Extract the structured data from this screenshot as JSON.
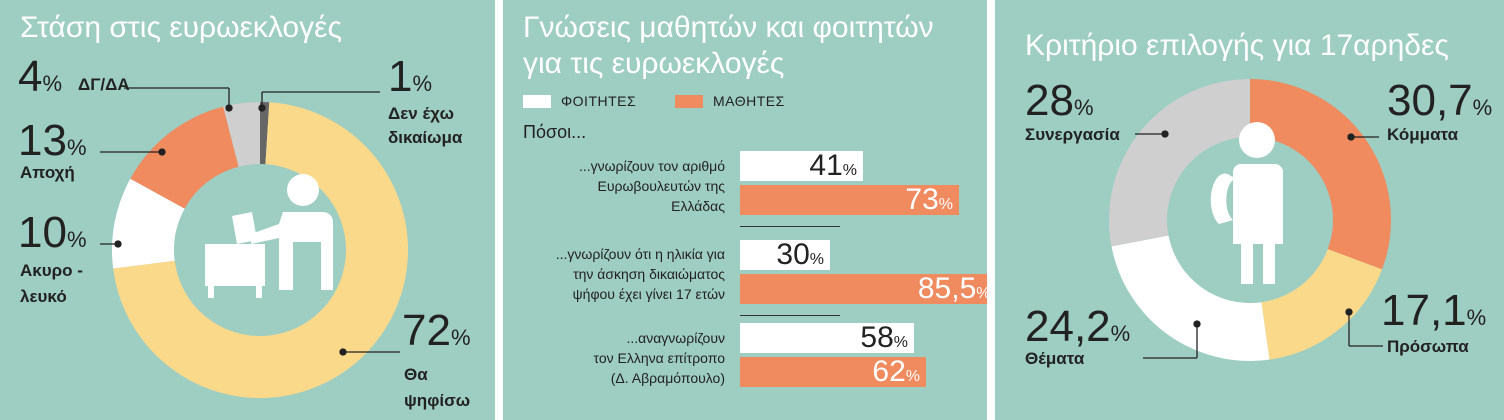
{
  "colors": {
    "background": "#9ecdc2",
    "orange": "#f08a5f",
    "yellow": "#fbd98a",
    "light_gray": "#cfcfcf",
    "dark_gray": "#666666",
    "white": "#ffffff"
  },
  "panel1": {
    "title": "Στάση στις ευρωεκλογές",
    "icon": "voter-ballot-box-icon",
    "segments": [
      {
        "value": "1",
        "label": "Δεν έχω\nδικαίωμα"
      },
      {
        "value": "72",
        "label": "Θα\nψηφίσω"
      },
      {
        "value": "10",
        "label": "Ακυρο -\nλευκό"
      },
      {
        "value": "13",
        "label": "Αποχή"
      },
      {
        "value": "4",
        "label": "ΔΓ/ΔΑ"
      }
    ]
  },
  "panel2": {
    "title_line1": "Γνώσεις μαθητών και φοιτητών",
    "title_line2": "για τις ευρωεκλογές",
    "legend": {
      "students": "ΦΟΙΤΗΤΕΣ",
      "pupils": "ΜΑΘΗΤΕΣ"
    },
    "subtitle": "Πόσοι...",
    "questions": [
      {
        "text": "...γνωρίζουν τον αριθμό\nΕυρωβουλευτών της\nΕλλάδας",
        "students": "41",
        "pupils": "73"
      },
      {
        "text": "...γνωρίζουν ότι η ηλικία για\nτην άσκηση δικαιώματος\nψήφου έχει γίνει 17 ετών",
        "students": "30",
        "pupils": "85,5"
      },
      {
        "text": "...αναγνωρίζουν\nτον Ελληνα επίτροπο\n(Δ. Αβραμόπουλο)",
        "students": "58",
        "pupils": "62"
      }
    ]
  },
  "panel3": {
    "title": "Κριτήριο επιλογής για 17αρηδες",
    "icon": "student-with-backpack-icon",
    "segments": [
      {
        "value": "30,7",
        "label": "Κόμματα"
      },
      {
        "value": "17,1",
        "label": "Πρόσωπα"
      },
      {
        "value": "24,2",
        "label": "Θέματα"
      },
      {
        "value": "28",
        "label": "Συνεργασία"
      }
    ]
  },
  "percent_sign": "%",
  "chart_data": [
    {
      "type": "pie",
      "title": "Στάση στις ευρωεκλογές",
      "categories": [
        "Δεν έχω δικαίωμα",
        "Θα ψηφίσω",
        "Ακυρο - λευκό",
        "Αποχή",
        "ΔΓ/ΔΑ"
      ],
      "values": [
        1,
        72,
        10,
        13,
        4
      ],
      "colors": [
        "#666666",
        "#fbd98a",
        "#ffffff",
        "#f08a5f",
        "#cfcfcf"
      ]
    },
    {
      "type": "bar",
      "title": "Γνώσεις μαθητών και φοιτητών για τις ευρωεκλογές",
      "categories": [
        "...γνωρίζουν τον αριθμό Ευρωβουλευτών της Ελλάδας",
        "...γνωρίζουν ότι η ηλικία για την άσκηση δικαιώματος ψήφου έχει γίνει 17 ετών",
        "...αναγνωρίζουν τον Ελληνα επίτροπο (Δ. Αβραμόπουλο)"
      ],
      "series": [
        {
          "name": "ΦΟΙΤΗΤΕΣ",
          "values": [
            41,
            30,
            58
          ]
        },
        {
          "name": "ΜΑΘΗΤΕΣ",
          "values": [
            73,
            85.5,
            62
          ]
        }
      ],
      "legend": "top"
    },
    {
      "type": "pie",
      "title": "Κριτήριο επιλογής για 17αρηδες",
      "categories": [
        "Κόμματα",
        "Πρόσωπα",
        "Θέματα",
        "Συνεργασία"
      ],
      "values": [
        30.7,
        17.1,
        24.2,
        28
      ],
      "colors": [
        "#f08a5f",
        "#fbd98a",
        "#ffffff",
        "#cfcfcf"
      ]
    }
  ]
}
